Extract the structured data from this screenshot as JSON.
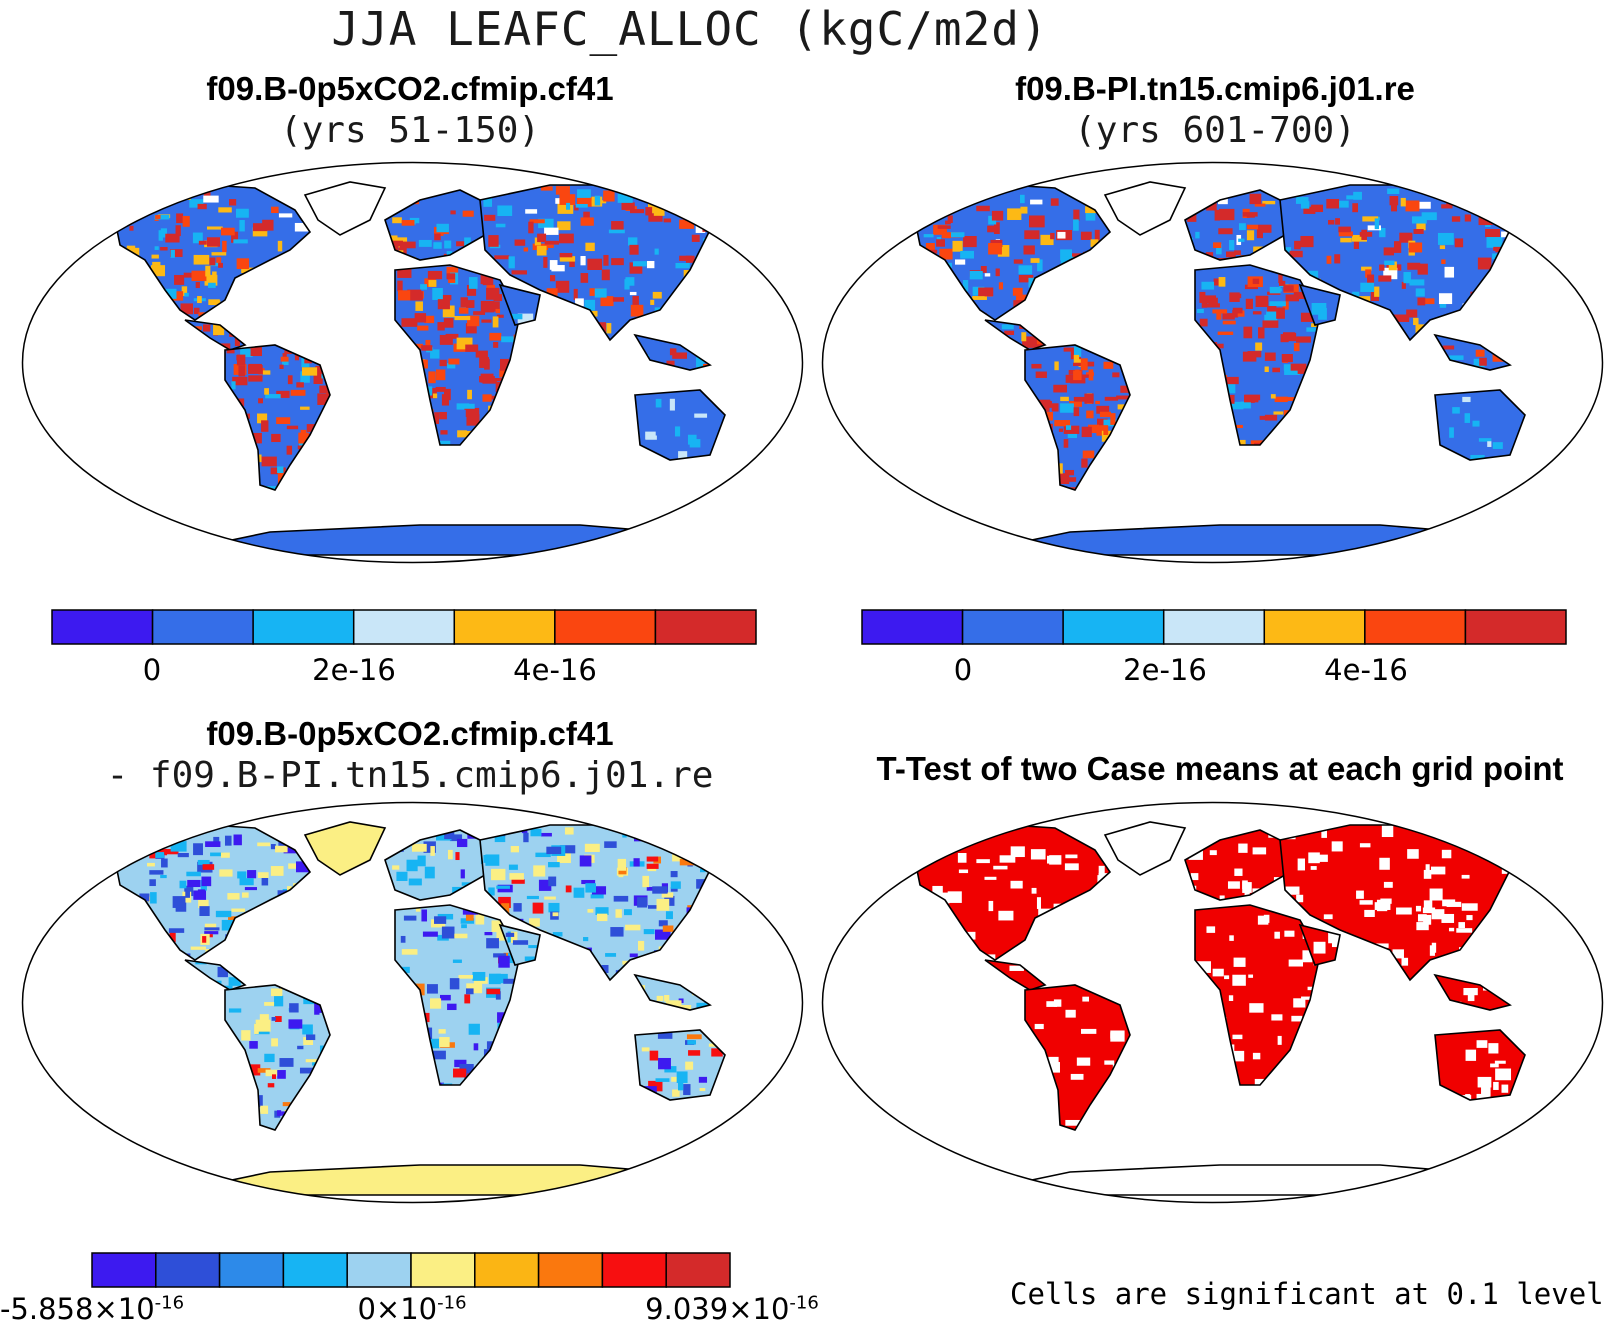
{
  "figure": {
    "title": "JJA LEAFC_ALLOC (kgC/m2d)"
  },
  "panels": {
    "top_left": {
      "title": "f09.B-0p5xCO2.cfmip.cf41",
      "subtitle": "(yrs 51-150)"
    },
    "top_right": {
      "title": "f09.B-PI.tn15.cmip6.j01.re",
      "subtitle": "(yrs 601-700)"
    },
    "bottom_left": {
      "title": "f09.B-0p5xCO2.cfmip.cf41",
      "subtitle": "- f09.B-PI.tn15.cmip6.j01.re"
    },
    "bottom_right": {
      "title": "T-Test of two Case means at each grid point",
      "note": "Cells are significant at 0.1 level"
    }
  },
  "colorbars": {
    "case": {
      "colors": [
        "#3d1af0",
        "#356ee8",
        "#17b4f3",
        "#c9e6f8",
        "#fdb915",
        "#fa4610",
        "#d42a2a"
      ],
      "ticks": [
        "0",
        "2e-16",
        "4e-16"
      ]
    },
    "diff": {
      "colors": [
        "#3d1af0",
        "#2e4fd8",
        "#2d8ae9",
        "#17b4f3",
        "#9dd2f0",
        "#fbef84",
        "#fbb514",
        "#fa780e",
        "#f70f10",
        "#d42a2a"
      ],
      "ticks": [
        {
          "mant": "-5.858×10",
          "exp": "-16"
        },
        {
          "mant": "0×10",
          "exp": "-16"
        },
        {
          "mant": "9.039×10",
          "exp": "-16"
        }
      ]
    }
  },
  "icons": [
    "world-map-robinson"
  ],
  "colors": {
    "background": "#ffffff",
    "outline": "#000000",
    "significant": "#f00000"
  }
}
